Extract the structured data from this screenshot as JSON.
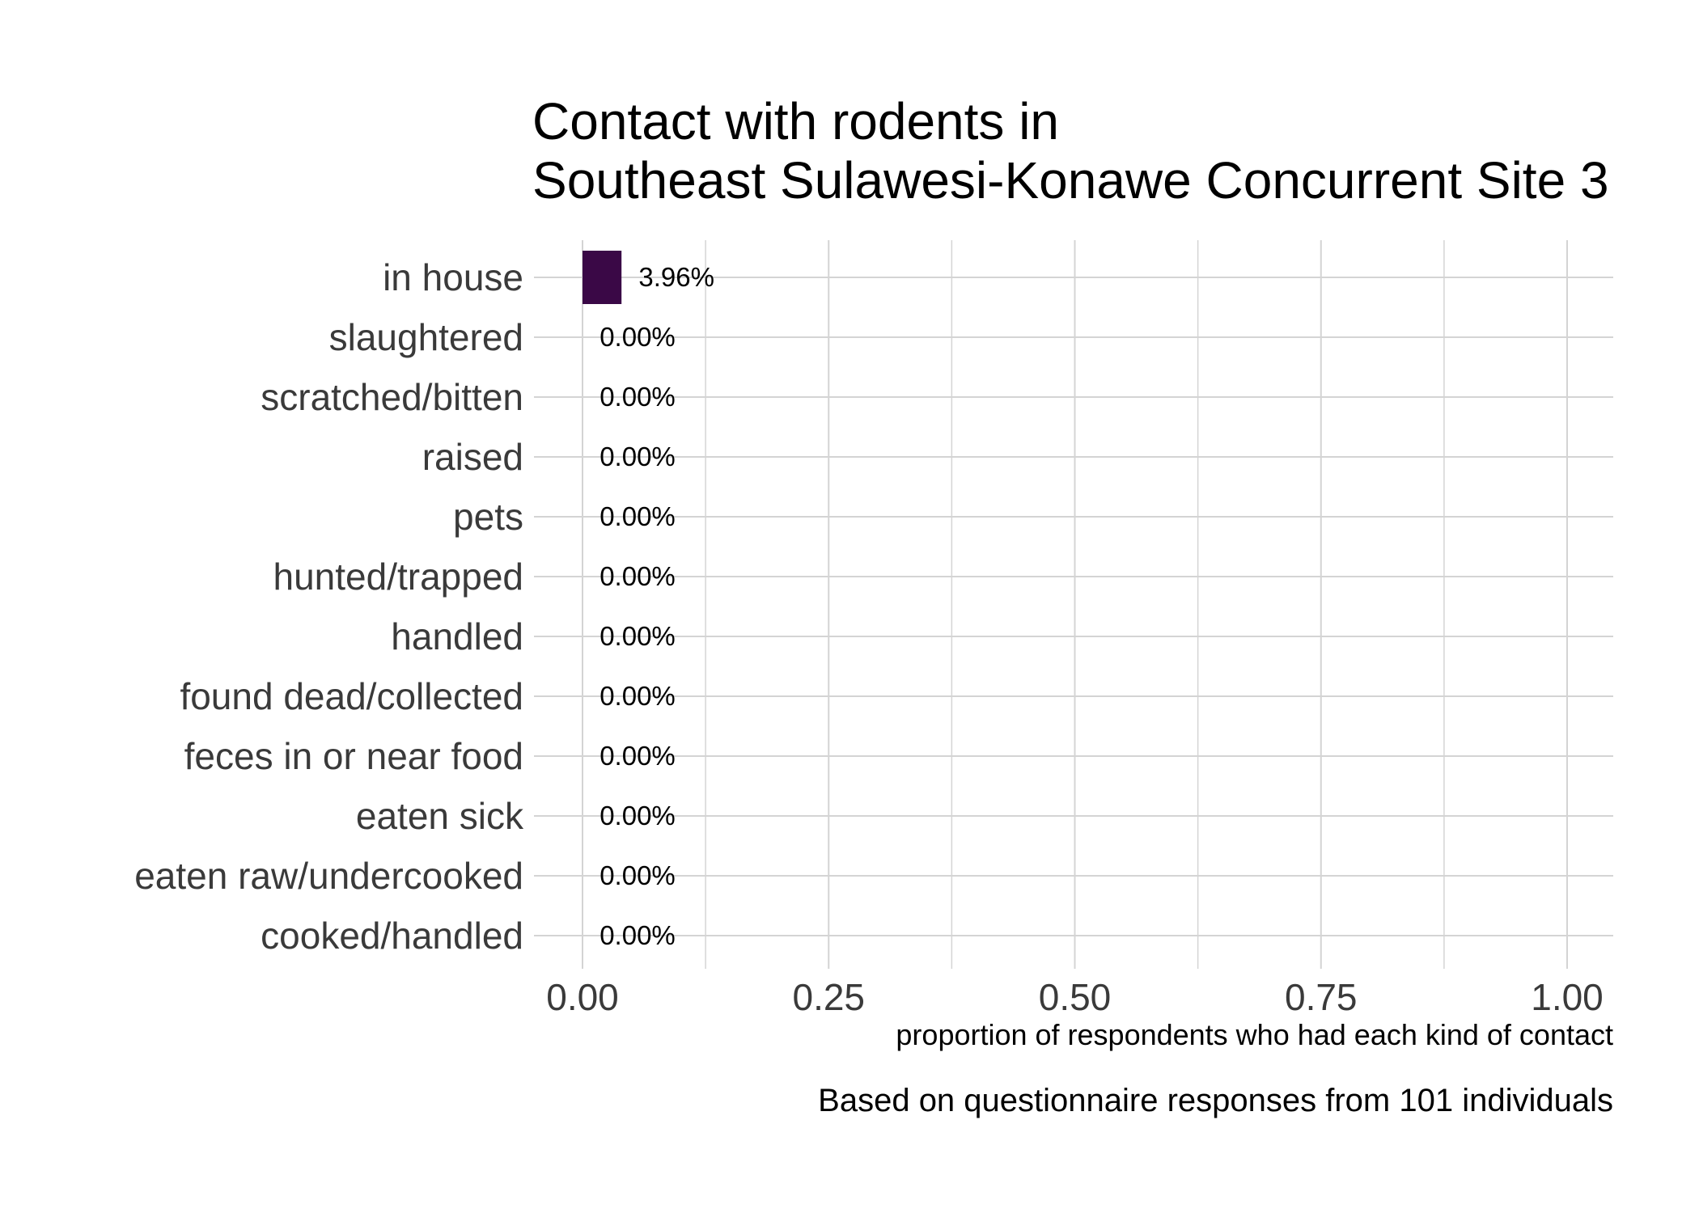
{
  "chart_data": {
    "type": "bar",
    "orientation": "horizontal",
    "title": [
      "Contact with rodents in",
      "Southeast Sulawesi-Konawe Concurrent Site 3"
    ],
    "categories": [
      "in house",
      "slaughtered",
      "scratched/bitten",
      "raised",
      "pets",
      "hunted/trapped",
      "handled",
      "found dead/collected",
      "feces in or near food",
      "eaten sick",
      "eaten raw/undercooked",
      "cooked/handled"
    ],
    "values": [
      0.0396,
      0,
      0,
      0,
      0,
      0,
      0,
      0,
      0,
      0,
      0,
      0
    ],
    "value_labels": [
      "3.96%",
      "0.00%",
      "0.00%",
      "0.00%",
      "0.00%",
      "0.00%",
      "0.00%",
      "0.00%",
      "0.00%",
      "0.00%",
      "0.00%",
      "0.00%"
    ],
    "xlabel": "proportion of respondents who had each kind of contact",
    "ylabel": "",
    "xlim": [
      0,
      1.05
    ],
    "xticks": [
      0,
      0.25,
      0.5,
      0.75,
      1.0
    ],
    "xtick_labels": [
      "0.00",
      "0.25",
      "0.50",
      "0.75",
      "1.00"
    ],
    "caption": "Based on questionnaire responses from 101 individuals",
    "grid": true,
    "bar_color": "#3a0846"
  }
}
